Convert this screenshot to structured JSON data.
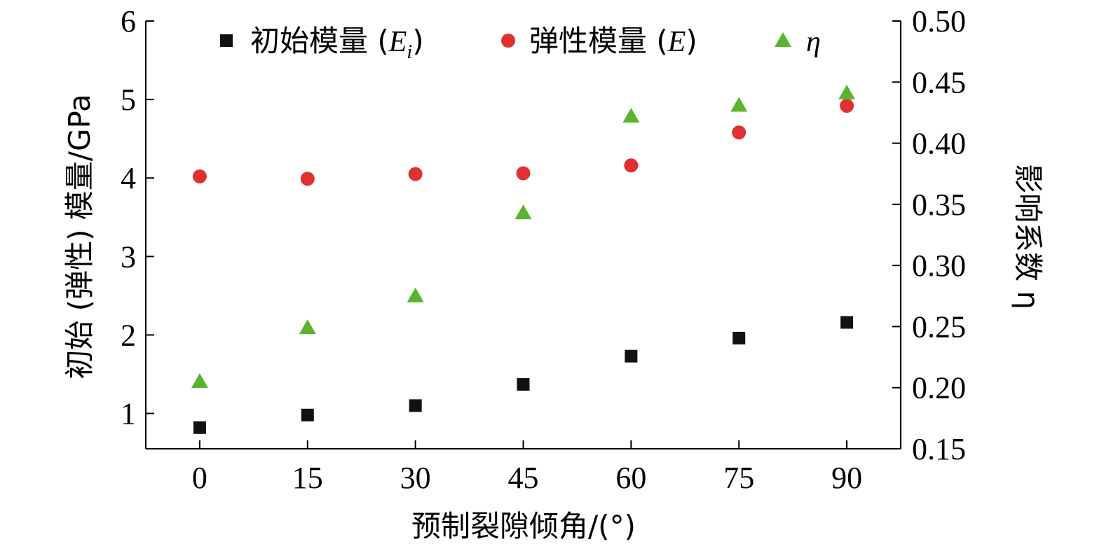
{
  "chart_data": {
    "type": "scatter",
    "x": [
      0,
      15,
      30,
      45,
      60,
      75,
      90
    ],
    "x_ticks": [
      "0",
      "15",
      "30",
      "45",
      "60",
      "75",
      "90"
    ],
    "xlim": [
      -7.5,
      97.5
    ],
    "xlabel": "预制裂隙倾角/(°)",
    "ylabel_left": "初始 (弹性) 模量/GPa",
    "ylabel_right": "影响系数 η",
    "ylim_left": [
      0.55,
      6
    ],
    "yticks_left": [
      "1",
      "2",
      "3",
      "4",
      "5",
      "6"
    ],
    "ylim_right": [
      0.15,
      0.5
    ],
    "yticks_right": [
      "0.15",
      "0.20",
      "0.25",
      "0.30",
      "0.35",
      "0.40",
      "0.45",
      "0.50"
    ],
    "legend_position": "top",
    "series": [
      {
        "name": "初始模量 (Ei)",
        "legend_prefix": "初始模量 (",
        "legend_italic": "E",
        "legend_sub": "i",
        "legend_suffix": ")",
        "axis": "left",
        "marker": "square",
        "color": "#111111",
        "values": [
          0.82,
          0.98,
          1.1,
          1.37,
          1.73,
          1.96,
          2.16
        ]
      },
      {
        "name": "弹性模量 (E)",
        "legend_prefix": "弹性模量 (",
        "legend_italic": "E",
        "legend_sub": "",
        "legend_suffix": ")",
        "axis": "left",
        "marker": "circle",
        "color": "#e03030",
        "values": [
          4.02,
          3.99,
          4.05,
          4.06,
          4.16,
          4.58,
          4.92
        ]
      },
      {
        "name": "η",
        "legend_prefix": "",
        "legend_italic": "η",
        "legend_sub": "",
        "legend_suffix": "",
        "axis": "right",
        "marker": "triangle",
        "color": "#5ab52e",
        "values": [
          0.205,
          0.249,
          0.275,
          0.343,
          0.422,
          0.431,
          0.441
        ]
      }
    ]
  }
}
